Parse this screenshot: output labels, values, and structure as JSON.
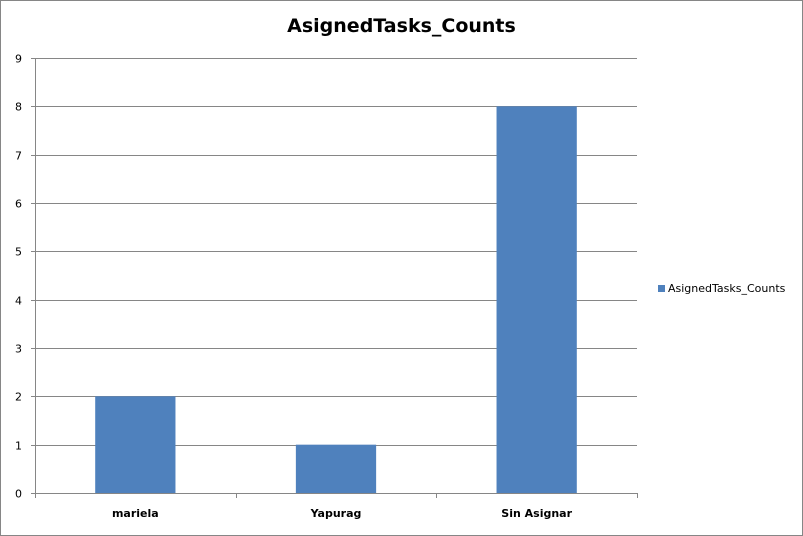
{
  "chart_data": {
    "type": "bar",
    "title": "AsignedTasks_Counts",
    "categories": [
      "mariela",
      "Yapurag",
      "Sin Asignar"
    ],
    "series": [
      {
        "name": "AsignedTasks_Counts",
        "values": [
          2,
          1,
          8
        ],
        "color": "#4f81bd"
      }
    ],
    "ylim": [
      0,
      9
    ],
    "yticks": [
      "0",
      "1",
      "2",
      "3",
      "4",
      "5",
      "6",
      "7",
      "8",
      "9"
    ],
    "grid": true,
    "legend_position": "right"
  }
}
